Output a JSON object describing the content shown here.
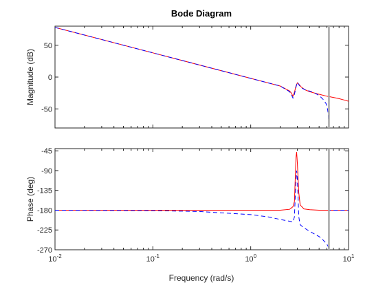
{
  "chart_data": {
    "type": "line",
    "title": "Bode Diagram",
    "xlabel": "Frequency (rad/s)",
    "xscale": "log",
    "xlim": [
      0.01,
      10
    ],
    "x_ticks": [
      {
        "value": 0.01,
        "base": "10",
        "exp": "-2"
      },
      {
        "value": 0.1,
        "base": "10",
        "exp": "-1"
      },
      {
        "value": 1,
        "base": "10",
        "exp": "0"
      },
      {
        "value": 10,
        "base": "10",
        "exp": "1"
      }
    ],
    "grid": false,
    "vertical_marker": {
      "x": 6.3,
      "color": "#a6a6a6"
    },
    "panels": [
      {
        "name": "magnitude",
        "ylabel": "Magnitude (dB)",
        "ylim": [
          -80,
          80
        ],
        "y_ticks": [
          "50",
          "0",
          "-50"
        ],
        "y_tick_values": [
          50,
          0,
          -50
        ],
        "series": [
          {
            "color": "#ff0000",
            "dash": "solid",
            "x": [
              0.01,
              0.1,
              1,
              2,
              2.5,
              2.6,
              2.7,
              2.8,
              2.9,
              3.0,
              3.1,
              3.3,
              3.6,
              4,
              5,
              6,
              7,
              8,
              9,
              10
            ],
            "y": [
              78,
              38,
              -2,
              -14,
              -22,
              -25,
              -30,
              -24,
              -14,
              -9,
              -11,
              -16,
              -20,
              -23,
              -27,
              -30,
              -32,
              -34,
              -36,
              -38
            ]
          },
          {
            "color": "#0000ff",
            "dash": "dashed",
            "x": [
              0.01,
              0.1,
              1,
              2,
              2.5,
              2.6,
              2.7,
              2.8,
              2.9,
              3.0,
              3.1,
              3.3,
              3.6,
              4,
              4.5,
              5,
              5.5,
              5.9,
              6.1,
              6.2,
              6.25,
              6.28
            ],
            "y": [
              78,
              38,
              -2,
              -14,
              -23,
              -27,
              -33,
              -27,
              -16,
              -8,
              -12,
              -17,
              -20,
              -22,
              -25,
              -29,
              -35,
              -42,
              -50,
              -58,
              -68,
              -78
            ]
          }
        ]
      },
      {
        "name": "phase",
        "ylabel": "Phase (deg)",
        "ylim": [
          -270,
          -40
        ],
        "y_ticks": [
          "-45",
          "-90",
          "-135",
          "-180",
          "-225",
          "-270"
        ],
        "y_tick_values": [
          -45,
          -90,
          -135,
          -180,
          -225,
          -270
        ],
        "series": [
          {
            "color": "#ff0000",
            "dash": "solid",
            "x": [
              0.01,
              0.1,
              1,
              2,
              2.5,
              2.7,
              2.8,
              2.85,
              2.9,
              2.95,
              3.0,
              3.1,
              3.2,
              3.5,
              4,
              5,
              6,
              8,
              10
            ],
            "y": [
              -180,
              -180,
              -180,
              -180,
              -178,
              -172,
              -160,
              -110,
              -60,
              -48,
              -75,
              -140,
              -168,
              -177,
              -179,
              -180,
              -180,
              -180,
              -180
            ]
          },
          {
            "color": "#0000ff",
            "dash": "dashed",
            "x": [
              0.01,
              0.1,
              0.3,
              1,
              1.5,
              2,
              2.5,
              2.7,
              2.8,
              2.85,
              2.9,
              2.95,
              3.0,
              3.1,
              3.2,
              3.5,
              4,
              5,
              5.5,
              6,
              6.2,
              6.28,
              6.3,
              6.5,
              8,
              10
            ],
            "y": [
              -180,
              -181,
              -183,
              -190,
              -195,
              -201,
              -205,
              -207,
              -195,
              -150,
              -115,
              -90,
              -110,
              -195,
              -213,
              -220,
              -228,
              -240,
              -248,
              -257,
              -263,
              -268,
              -180,
              -180,
              -180,
              -180
            ]
          }
        ]
      }
    ]
  }
}
